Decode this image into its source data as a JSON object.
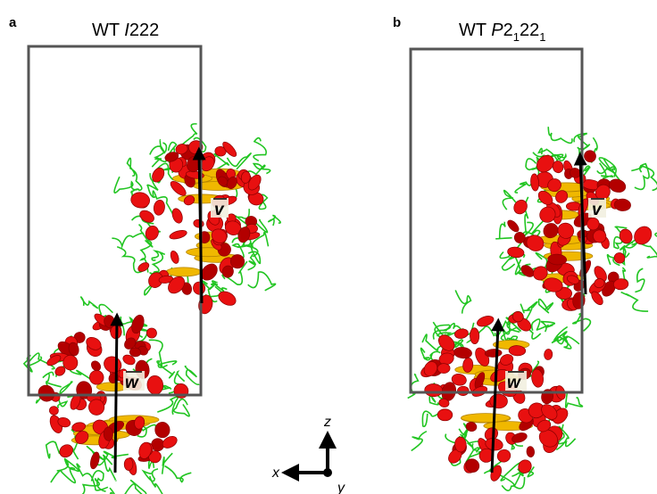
{
  "panels": [
    {
      "label": "a",
      "title": [
        {
          "text": "WT "
        },
        {
          "text": "I",
          "italic": true
        },
        {
          "text": "222"
        }
      ],
      "vectors": [
        "v",
        "w"
      ]
    },
    {
      "label": "b",
      "title": [
        {
          "text": "WT "
        },
        {
          "text": "P",
          "italic": true
        },
        {
          "text": "2"
        },
        {
          "text": "1",
          "subscript": true
        },
        {
          "text": "22"
        },
        {
          "text": "1",
          "subscript": true
        }
      ],
      "vectors": [
        "v",
        "w"
      ]
    }
  ],
  "axes": {
    "vertical": "z",
    "horizontal": "x",
    "depth": "y"
  }
}
